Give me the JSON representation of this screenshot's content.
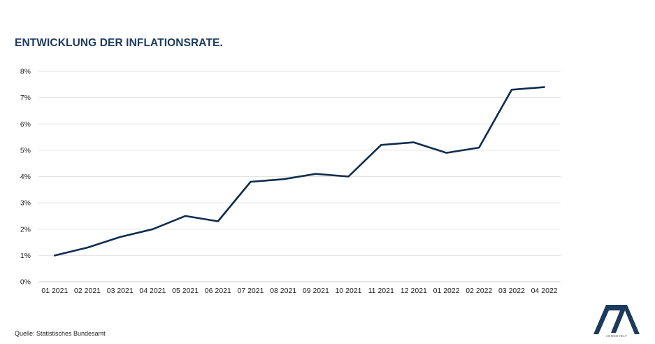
{
  "title": "ENTWICKLUNG DER INFLATIONSRATE.",
  "source": "Quelle: Statistisches Bundesamt",
  "logo_text": "AENGEVELT",
  "colors": {
    "line": "#0f2d4f",
    "title": "#1b3a5c",
    "grid": "#e3e3e3"
  },
  "chart_data": {
    "type": "line",
    "title": "ENTWICKLUNG DER INFLATIONSRATE.",
    "xlabel": "",
    "ylabel": "",
    "categories": [
      "01 2021",
      "02 2021",
      "03 2021",
      "04 2021",
      "05 2021",
      "06 2021",
      "07 2021",
      "08 2021",
      "09 2021",
      "10 2021",
      "11 2021",
      "12 2021",
      "01 2022",
      "02 2022",
      "03 2022",
      "04 2022"
    ],
    "values": [
      1.0,
      1.3,
      1.7,
      2.0,
      2.5,
      2.3,
      3.8,
      3.9,
      4.1,
      4.0,
      5.2,
      5.3,
      4.9,
      5.1,
      7.3,
      7.4
    ],
    "ylim": [
      0,
      8
    ],
    "yticks": [
      "0%",
      "1%",
      "2%",
      "3%",
      "4%",
      "5%",
      "6%",
      "7%",
      "8%"
    ],
    "grid": true,
    "legend": "none"
  }
}
